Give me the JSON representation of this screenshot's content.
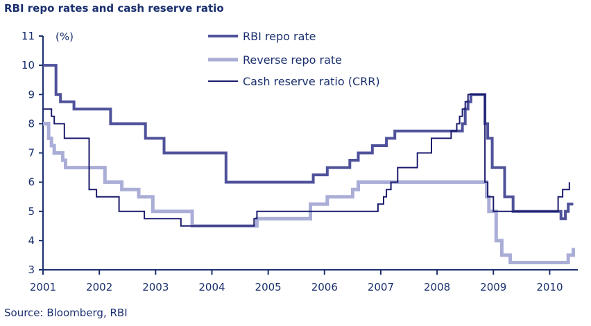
{
  "chart_data": {
    "type": "line",
    "title": "RBI repo rates and cash reserve ratio",
    "unit_label": "(%)",
    "source": "Source: Bloomberg, RBI",
    "ylim": [
      3,
      11
    ],
    "yticks": [
      3,
      4,
      5,
      6,
      7,
      8,
      9,
      10,
      11
    ],
    "xlim": [
      2001,
      2010.5
    ],
    "xticks": [
      2001,
      2002,
      2003,
      2004,
      2005,
      2006,
      2007,
      2008,
      2009,
      2010
    ],
    "xtick_labels": [
      "2001",
      "2002",
      "2003",
      "2004",
      "2005",
      "2006",
      "2007",
      "2008",
      "2009",
      "2010"
    ],
    "grid": false,
    "legend_position": "top-center",
    "series": [
      {
        "name": "RBI repo rate",
        "color": "#4f529a",
        "line_width": 4,
        "step": true,
        "x": [
          2001.0,
          2001.23,
          2001.31,
          2001.55,
          2002.2,
          2002.82,
          2003.15,
          2004.25,
          2005.8,
          2006.05,
          2006.45,
          2006.6,
          2006.85,
          2007.1,
          2007.25,
          2008.45,
          2008.5,
          2008.55,
          2008.6,
          2008.65,
          2008.85,
          2008.9,
          2008.98,
          2009.2,
          2009.35,
          2010.2,
          2010.28,
          2010.33,
          2010.42
        ],
        "y": [
          10,
          9,
          8.75,
          8.5,
          8,
          7.5,
          7,
          6,
          6.25,
          6.5,
          6.75,
          7,
          7.25,
          7.5,
          7.75,
          8,
          8.5,
          8.75,
          9,
          9,
          8,
          7.5,
          6.5,
          5.5,
          5,
          4.75,
          5,
          5.25,
          5.25
        ]
      },
      {
        "name": "Reverse repo rate",
        "color": "#aaaed7",
        "line_width": 5,
        "step": true,
        "x": [
          2001.0,
          2001.1,
          2001.15,
          2001.2,
          2001.35,
          2001.4,
          2002.1,
          2002.4,
          2002.7,
          2002.95,
          2003.65,
          2004.8,
          2004.95,
          2005.75,
          2006.05,
          2006.5,
          2006.6,
          2008.65,
          2008.88,
          2008.92,
          2009.05,
          2009.15,
          2009.3,
          2010.2,
          2010.33,
          2010.42
        ],
        "y": [
          8,
          7.5,
          7.25,
          7,
          6.75,
          6.5,
          6,
          5.75,
          5.5,
          5,
          4.5,
          4.75,
          4.75,
          5.25,
          5.5,
          5.75,
          6,
          6,
          5.5,
          5,
          4,
          3.5,
          3.25,
          3.25,
          3.5,
          3.75
        ]
      },
      {
        "name": "Cash reserve ratio (CRR)",
        "color": "#1c1c6e",
        "line_width": 2,
        "step": true,
        "x": [
          2001.0,
          2001.15,
          2001.2,
          2001.25,
          2001.38,
          2001.82,
          2001.95,
          2002.35,
          2002.8,
          2003.45,
          2004.75,
          2004.8,
          2006.95,
          2007.05,
          2007.1,
          2007.18,
          2007.3,
          2007.65,
          2007.9,
          2008.25,
          2008.35,
          2008.4,
          2008.45,
          2008.5,
          2008.55,
          2008.6,
          2008.85,
          2008.9,
          2008.95,
          2009.0,
          2010.15,
          2010.23,
          2010.35
        ],
        "y": [
          8.5,
          8.25,
          8,
          8,
          7.5,
          5.75,
          5.5,
          5,
          4.75,
          4.5,
          4.75,
          5,
          5.25,
          5.5,
          5.75,
          6,
          6.5,
          7,
          7.5,
          7.75,
          8,
          8.25,
          8.5,
          8.75,
          9,
          9,
          6,
          5.5,
          5.5,
          5,
          5.5,
          5.75,
          6
        ]
      }
    ]
  }
}
